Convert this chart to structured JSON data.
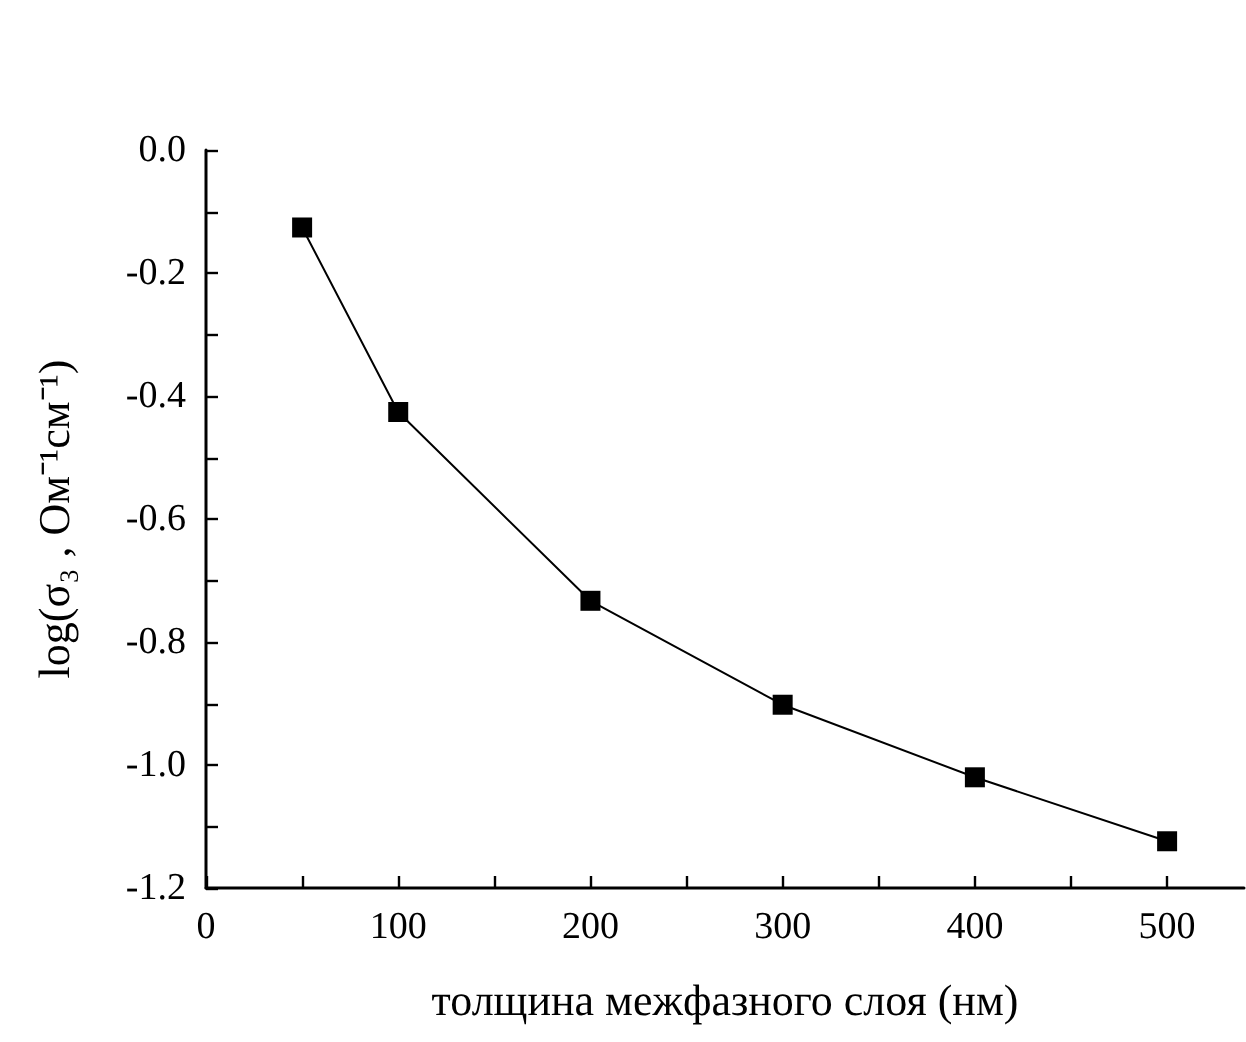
{
  "chart_data": {
    "type": "line",
    "xlabel": "толщина межфазного слоя (нм)",
    "ylabel": "log(σ₃ , Ом⁻¹см⁻¹)",
    "x": [
      50,
      100,
      200,
      300,
      400,
      500
    ],
    "series": [
      {
        "color": "#000000",
        "values": [
          -0.126,
          -0.426,
          -0.733,
          -0.902,
          -1.02,
          -1.124
        ]
      }
    ],
    "xlim": [
      0,
      540
    ],
    "xticks": [
      0,
      {
        "value": 50,
        "label": null
      },
      100,
      {
        "value": 150,
        "label": null
      },
      200,
      {
        "value": 250,
        "label": null
      },
      300,
      {
        "value": 350,
        "label": null
      },
      400,
      {
        "value": 450,
        "label": null
      },
      500
    ],
    "ylim": [
      -1.2,
      0
    ],
    "yticks": [
      {
        "value": -1.2,
        "label": "-1.2"
      },
      {
        "value": -1.1,
        "label": null
      },
      {
        "value": -1.0,
        "label": "-1.0"
      },
      {
        "value": -0.9,
        "label": null
      },
      {
        "value": -0.8,
        "label": "-0.8"
      },
      {
        "value": -0.7,
        "label": null
      },
      {
        "value": -0.6,
        "label": "-0.6"
      },
      {
        "value": -0.5,
        "label": null
      },
      {
        "value": -0.4,
        "label": "-0.4"
      },
      {
        "value": -0.3,
        "label": null
      },
      {
        "value": -0.2,
        "label": "-0.2"
      },
      {
        "value": -0.1,
        "label": null
      },
      {
        "value": 0,
        "label": "0.0"
      }
    ],
    "grid": false,
    "marker": "square",
    "line_style": "solid"
  }
}
